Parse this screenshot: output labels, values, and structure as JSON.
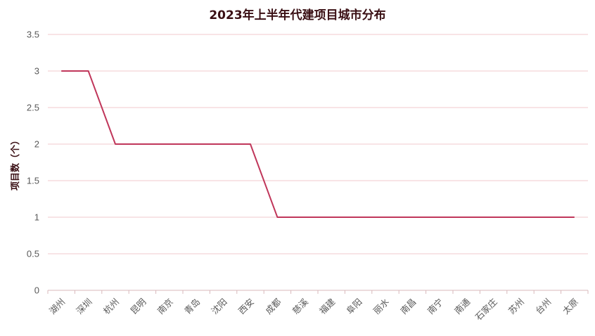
{
  "chart_data": {
    "type": "line",
    "title": "2023年上半年代建项目城市分布",
    "xlabel": "",
    "ylabel": "项目数（个）",
    "ylim": [
      0,
      3.5
    ],
    "yticks": [
      "0",
      "0.5",
      "1",
      "1.5",
      "2",
      "2.5",
      "3",
      "3.5"
    ],
    "grid": true,
    "legend": "none",
    "line_color": "#c0365a",
    "categories": [
      "湖州",
      "深圳",
      "杭州",
      "昆明",
      "南京",
      "青岛",
      "沈阳",
      "西安",
      "成都",
      "慈溪",
      "福建",
      "阜阳",
      "丽水",
      "南昌",
      "南宁",
      "南通",
      "石家庄",
      "苏州",
      "台州",
      "太原"
    ],
    "series": [
      {
        "values": [
          3,
          3,
          2,
          2,
          2,
          2,
          2,
          2,
          1,
          1,
          1,
          1,
          1,
          1,
          1,
          1,
          1,
          1,
          1,
          1
        ]
      }
    ]
  }
}
